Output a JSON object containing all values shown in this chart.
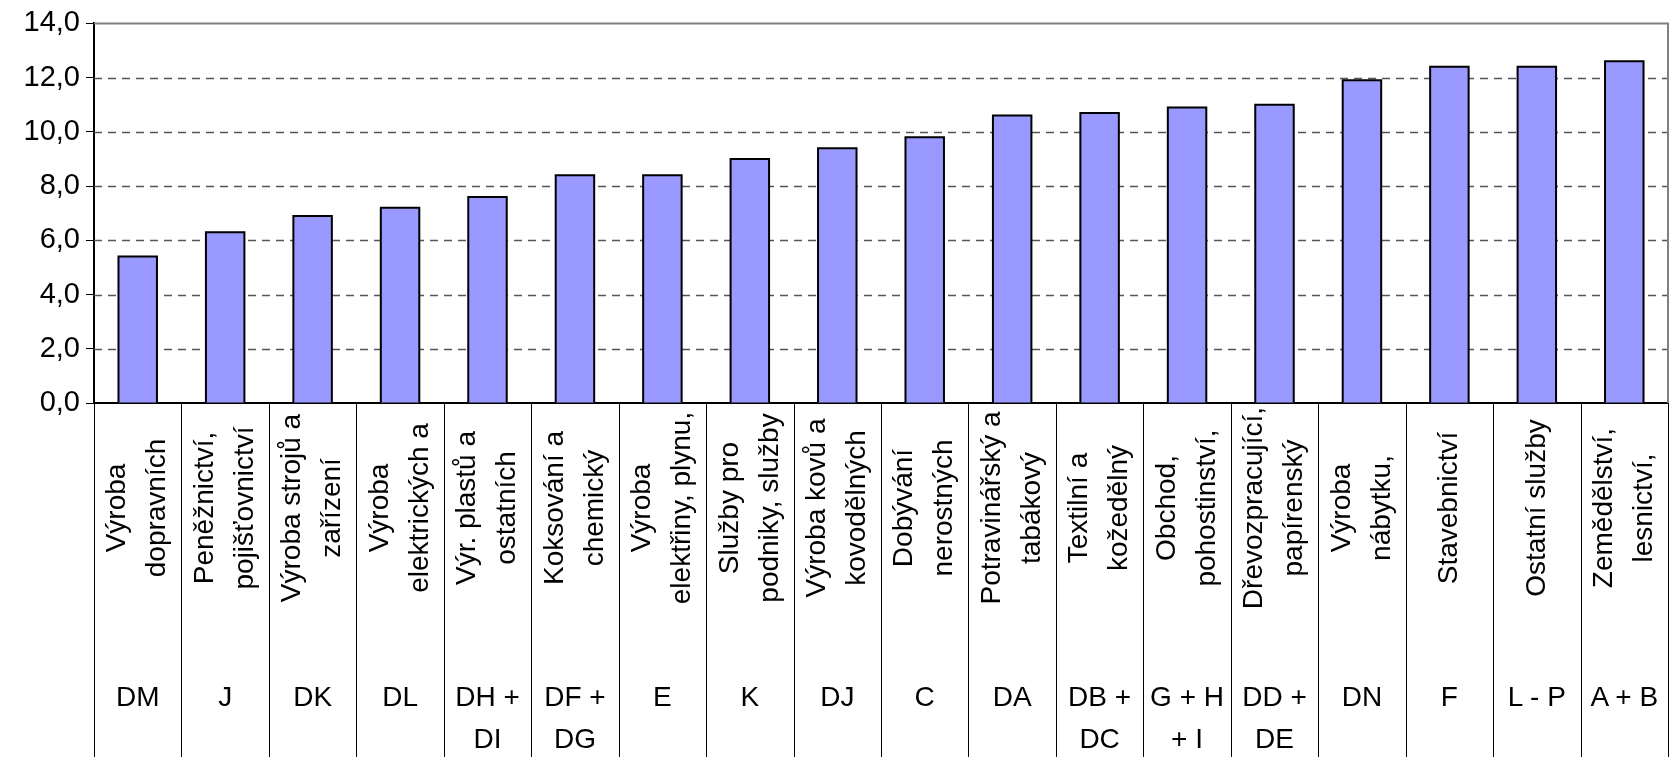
{
  "chart_data": {
    "type": "bar",
    "categories": [
      "Výroba\ndopravních\n\nDM",
      "Peněžnictví,\npojišťovnictví\n\nJ",
      "Výroba strojů a\nzařízení\n\nDK",
      "Výroba\nelektrických a\n\nDL",
      "Výr. plastů a\nostatních\n\nDH +\nDI",
      "Koksování a\nchemický\n\nDF +\nDG",
      "Výroba\nelektřiny, plynu,\n\nE",
      "Služby pro\npodniky, služby\n\nK",
      "Výroba kovů a\nkovodělných\n\nDJ",
      "Dobývání\nnerostných\n\nC",
      "Potravinářský a\ntabákový\n\nDA",
      "Textilní a\nkožedělný\n\nDB +\nDC",
      "Obchod,\npohostinství,\n\nG + H\n+ I",
      "Dřevozpracující,\npapírenský\n\nDD +\nDE",
      "Výroba\nnábytku,\n\nDN",
      "Stavebnictví\n\nF",
      "Ostatní služby\n\nL - P",
      "Zemědělství,\nlesnictví,\n\nA + B"
    ],
    "values": [
      5.4,
      6.3,
      6.9,
      7.2,
      7.6,
      8.4,
      8.4,
      9.0,
      9.4,
      9.8,
      10.6,
      10.7,
      10.9,
      11.0,
      11.9,
      12.4,
      12.4,
      12.6
    ],
    "color": "#9999ff",
    "ylim": [
      0,
      14
    ],
    "yticks": [
      {
        "value": 0,
        "label": "0,0"
      },
      {
        "value": 2,
        "label": "2,0"
      },
      {
        "value": 4,
        "label": "4,0"
      },
      {
        "value": 6,
        "label": "6,0"
      },
      {
        "value": 8,
        "label": "8,0"
      },
      {
        "value": 10,
        "label": "10,0"
      },
      {
        "value": 12,
        "label": "12,0"
      },
      {
        "value": 14,
        "label": "14,0"
      }
    ],
    "grid": "y",
    "legend": false
  }
}
